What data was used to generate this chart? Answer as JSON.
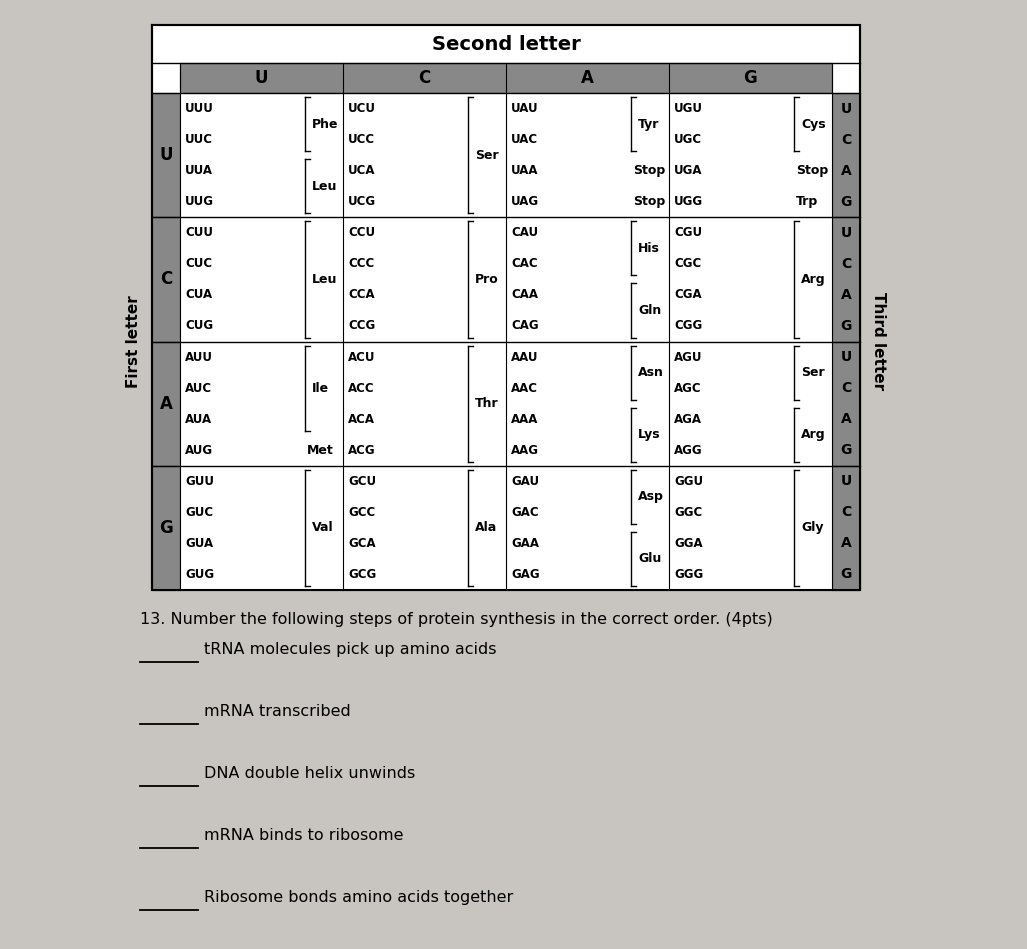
{
  "bg_color": "#c8c4c0",
  "question_text": "13. Number the following steps of protein synthesis in the correct order. (4pts)",
  "steps": [
    "tRNA molecules pick up amino acids",
    "mRNA transcribed",
    "DNA double helix unwinds",
    "mRNA binds to ribosome",
    "Ribosome bonds amino acids together"
  ],
  "second_letter_label": "Second letter",
  "first_letter_label": "First letter",
  "third_letter_label": "Third letter",
  "col_headers": [
    "U",
    "C",
    "A",
    "G"
  ],
  "row_headers": [
    "U",
    "C",
    "A",
    "G"
  ],
  "gray_dark": "#888888",
  "gray_light": "#bbbbbb",
  "white": "#ffffff",
  "cell_data": {
    "UU": {
      "codons": [
        "UUU",
        "UUC",
        "UUA",
        "UUG"
      ],
      "amino_groups": [
        {
          "name": "Phe",
          "rows": [
            0,
            1
          ],
          "bracket": "right"
        },
        {
          "name": "Leu",
          "rows": [
            2,
            3
          ],
          "bracket": "right"
        }
      ]
    },
    "UC": {
      "codons": [
        "UCU",
        "UCC",
        "UCA",
        "UCG"
      ],
      "amino_groups": [
        {
          "name": "Ser",
          "rows": [
            0,
            1,
            2,
            3
          ],
          "bracket": "right"
        }
      ]
    },
    "UA": {
      "codons": [
        "UAU",
        "UAC",
        "UAA",
        "UAG"
      ],
      "amino_groups": [
        {
          "name": "Tyr",
          "rows": [
            0,
            1
          ],
          "bracket": "right"
        },
        {
          "name": "Stop",
          "rows": [
            2
          ],
          "bracket": "none"
        },
        {
          "name": "Stop",
          "rows": [
            3
          ],
          "bracket": "none"
        }
      ]
    },
    "UG": {
      "codons": [
        "UGU",
        "UGC",
        "UGA",
        "UGG"
      ],
      "amino_groups": [
        {
          "name": "Cys",
          "rows": [
            0,
            1
          ],
          "bracket": "right"
        },
        {
          "name": "Stop",
          "rows": [
            2
          ],
          "bracket": "none"
        },
        {
          "name": "Trp",
          "rows": [
            3
          ],
          "bracket": "none"
        }
      ]
    },
    "CU": {
      "codons": [
        "CUU",
        "CUC",
        "CUA",
        "CUG"
      ],
      "amino_groups": [
        {
          "name": "Leu",
          "rows": [
            0,
            1,
            2,
            3
          ],
          "bracket": "right"
        }
      ]
    },
    "CC": {
      "codons": [
        "CCU",
        "CCC",
        "CCA",
        "CCG"
      ],
      "amino_groups": [
        {
          "name": "Pro",
          "rows": [
            0,
            1,
            2,
            3
          ],
          "bracket": "right"
        }
      ]
    },
    "CA": {
      "codons": [
        "CAU",
        "CAC",
        "CAA",
        "CAG"
      ],
      "amino_groups": [
        {
          "name": "His",
          "rows": [
            0,
            1
          ],
          "bracket": "right"
        },
        {
          "name": "Gln",
          "rows": [
            2,
            3
          ],
          "bracket": "right"
        }
      ]
    },
    "CG": {
      "codons": [
        "CGU",
        "CGC",
        "CGA",
        "CGG"
      ],
      "amino_groups": [
        {
          "name": "Arg",
          "rows": [
            0,
            1,
            2,
            3
          ],
          "bracket": "right"
        }
      ]
    },
    "AU": {
      "codons": [
        "AUU",
        "AUC",
        "AUA",
        "AUG"
      ],
      "amino_groups": [
        {
          "name": "Ile",
          "rows": [
            0,
            1,
            2
          ],
          "bracket": "right"
        },
        {
          "name": "Met",
          "rows": [
            3
          ],
          "bracket": "none"
        }
      ]
    },
    "AC": {
      "codons": [
        "ACU",
        "ACC",
        "ACA",
        "ACG"
      ],
      "amino_groups": [
        {
          "name": "Thr",
          "rows": [
            0,
            1,
            2,
            3
          ],
          "bracket": "right"
        }
      ]
    },
    "AA": {
      "codons": [
        "AAU",
        "AAC",
        "AAA",
        "AAG"
      ],
      "amino_groups": [
        {
          "name": "Asn",
          "rows": [
            0,
            1
          ],
          "bracket": "right"
        },
        {
          "name": "Lys",
          "rows": [
            2,
            3
          ],
          "bracket": "right"
        }
      ]
    },
    "AG": {
      "codons": [
        "AGU",
        "AGC",
        "AGA",
        "AGG"
      ],
      "amino_groups": [
        {
          "name": "Ser",
          "rows": [
            0,
            1
          ],
          "bracket": "right"
        },
        {
          "name": "Arg",
          "rows": [
            2,
            3
          ],
          "bracket": "right"
        }
      ]
    },
    "GU": {
      "codons": [
        "GUU",
        "GUC",
        "GUA",
        "GUG"
      ],
      "amino_groups": [
        {
          "name": "Val",
          "rows": [
            0,
            1,
            2,
            3
          ],
          "bracket": "right"
        }
      ]
    },
    "GC": {
      "codons": [
        "GCU",
        "GCC",
        "GCA",
        "GCG"
      ],
      "amino_groups": [
        {
          "name": "Ala",
          "rows": [
            0,
            1,
            2,
            3
          ],
          "bracket": "right"
        }
      ]
    },
    "GA": {
      "codons": [
        "GAU",
        "GAC",
        "GAA",
        "GAG"
      ],
      "amino_groups": [
        {
          "name": "Asp",
          "rows": [
            0,
            1
          ],
          "bracket": "right"
        },
        {
          "name": "Glu",
          "rows": [
            2,
            3
          ],
          "bracket": "right"
        }
      ]
    },
    "GG": {
      "codons": [
        "GGU",
        "GGC",
        "GGA",
        "GGG"
      ],
      "amino_groups": [
        {
          "name": "Gly",
          "rows": [
            0,
            1,
            2,
            3
          ],
          "bracket": "right"
        }
      ]
    }
  }
}
